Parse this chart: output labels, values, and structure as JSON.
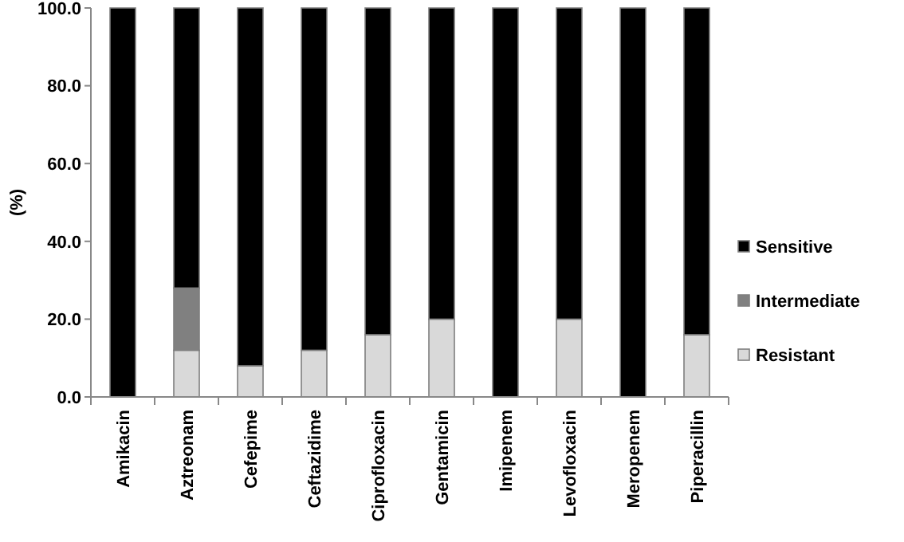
{
  "chart_data": {
    "type": "bar",
    "stacked": true,
    "ylabel": "(%)",
    "categories": [
      "Amikacin",
      "Aztreonam",
      "Cefepime",
      "Ceftazidime",
      "Ciprofloxacin",
      "Gentamicin",
      "Imipenem",
      "Levofloxacin",
      "Meropenem",
      "Piperacillin"
    ],
    "series": [
      {
        "name": "Resistant",
        "color": "#d9d9d9",
        "values": [
          0,
          12,
          8,
          12,
          16,
          20,
          0,
          20,
          0,
          16
        ]
      },
      {
        "name": "Intermediate",
        "color": "#808080",
        "values": [
          0,
          16,
          0,
          0,
          0,
          0,
          0,
          0,
          0,
          0
        ]
      },
      {
        "name": "Sensitive",
        "color": "#000000",
        "values": [
          100,
          72,
          92,
          88,
          84,
          80,
          100,
          80,
          100,
          84
        ]
      }
    ],
    "ylim": [
      0,
      100
    ],
    "yticks": [
      {
        "value": 0,
        "label": "0.0"
      },
      {
        "value": 20,
        "label": "20.0"
      },
      {
        "value": 40,
        "label": "40.0"
      },
      {
        "value": 60,
        "label": "60.0"
      },
      {
        "value": 80,
        "label": "80.0"
      },
      {
        "value": 100,
        "label": "100.0"
      }
    ],
    "legend": "right"
  }
}
